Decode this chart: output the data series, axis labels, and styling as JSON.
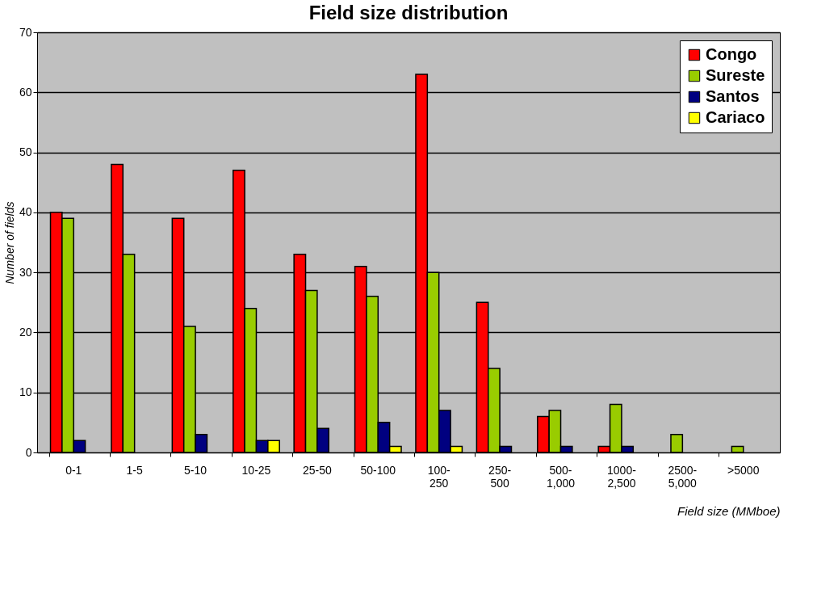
{
  "chart_data": {
    "type": "bar",
    "title": "Field size distribution",
    "xlabel": "Field size (MMboe)",
    "ylabel": "Number of fields",
    "categories": [
      "0-1",
      "1-5",
      "5-10",
      "10-25",
      "25-50",
      "50-100",
      "100-\n250",
      "250-\n500",
      "500-\n1,000",
      "1000-\n2,500",
      "2500-\n5,000",
      ">5000"
    ],
    "series": [
      {
        "name": "Congo",
        "color": "#ff0000",
        "values": [
          40,
          48,
          39,
          47,
          33,
          31,
          63,
          25,
          6,
          1,
          0,
          0
        ]
      },
      {
        "name": "Sureste",
        "color": "#99cc00",
        "values": [
          39,
          33,
          21,
          24,
          27,
          26,
          30,
          14,
          7,
          8,
          3,
          1
        ]
      },
      {
        "name": "Santos",
        "color": "#000080",
        "values": [
          2,
          0,
          3,
          2,
          4,
          5,
          7,
          1,
          1,
          1,
          0,
          0
        ]
      },
      {
        "name": "Cariaco",
        "color": "#ffff00",
        "values": [
          0,
          0,
          0,
          2,
          0,
          1,
          1,
          0,
          0,
          0,
          0,
          0
        ]
      }
    ],
    "ylim": [
      0,
      70
    ],
    "yticks": [
      0,
      10,
      20,
      30,
      40,
      50,
      60,
      70
    ],
    "grid": "y",
    "legend": "top right"
  }
}
